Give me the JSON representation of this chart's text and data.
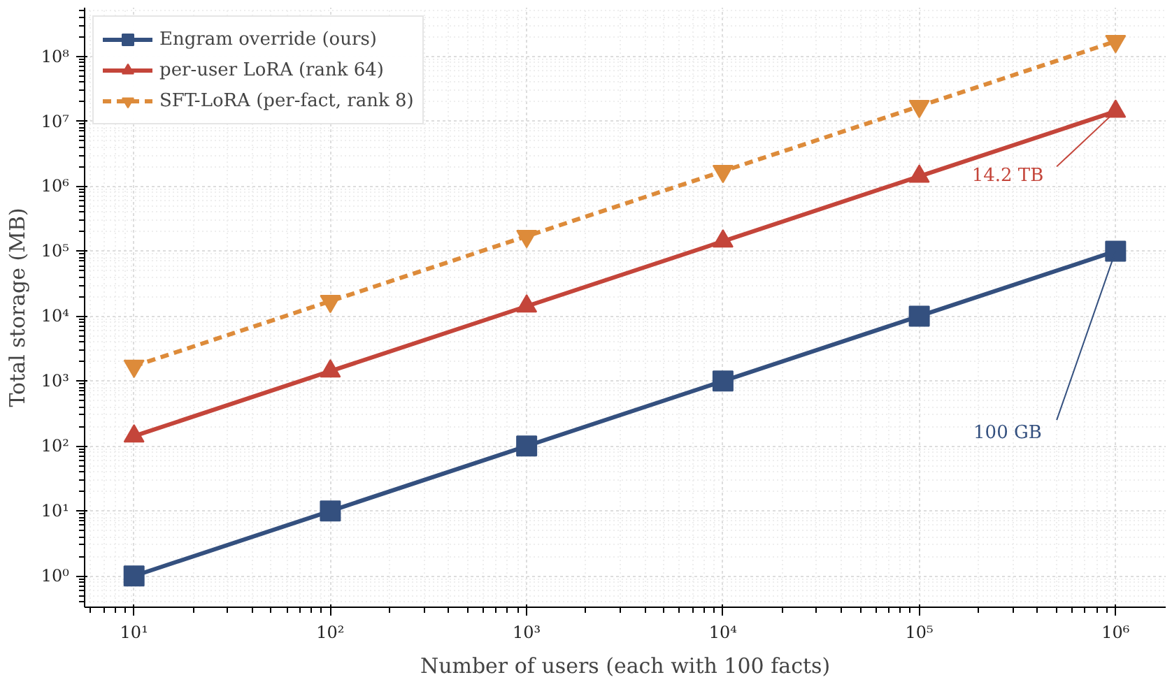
{
  "chart_data": {
    "type": "line",
    "xlabel": "Number of users (each with 100 facts)",
    "ylabel": "Total storage (MB)",
    "log": "xy",
    "grid": true,
    "legend": "top left",
    "x": [
      10,
      100,
      1000,
      10000,
      100000,
      1000000
    ],
    "xlim": [
      5.6,
      1800000
    ],
    "ylim": [
      0.33,
      560000000
    ],
    "xticks": [
      {
        "value": 10,
        "label": "10¹"
      },
      {
        "value": 100,
        "label": "10²"
      },
      {
        "value": 1000,
        "label": "10³"
      },
      {
        "value": 10000,
        "label": "10⁴"
      },
      {
        "value": 100000,
        "label": "10⁵"
      },
      {
        "value": 1000000,
        "label": "10⁶"
      }
    ],
    "yticks": [
      {
        "value": 1,
        "label": "10⁰"
      },
      {
        "value": 10,
        "label": "10¹"
      },
      {
        "value": 100,
        "label": "10²"
      },
      {
        "value": 1000,
        "label": "10³"
      },
      {
        "value": 10000,
        "label": "10⁴"
      },
      {
        "value": 100000,
        "label": "10⁵"
      },
      {
        "value": 1000000,
        "label": "10⁶"
      },
      {
        "value": 10000000,
        "label": "10⁷"
      },
      {
        "value": 100000000,
        "label": "10⁸"
      }
    ],
    "series": [
      {
        "name": "Engram override (ours)",
        "color": "#34507f",
        "marker": "square",
        "line_style": "solid",
        "values": [
          1,
          10,
          100,
          1000,
          10000,
          100000
        ]
      },
      {
        "name": "per-user LoRA (rank 64)",
        "color": "#c4453a",
        "marker": "triangle",
        "line_style": "solid",
        "values": [
          142,
          1420,
          14200,
          142000,
          1420000,
          14200000
        ]
      },
      {
        "name": "SFT-LoRA (per-fact, rank 8)",
        "color": "#dd8b3a",
        "marker": "triangle",
        "line_style": "dashed",
        "values": [
          1700,
          17000,
          170000,
          1700000,
          17000000,
          170000000
        ]
      }
    ],
    "annotations": [
      {
        "text": "14.2 TB",
        "x": 1000000,
        "y": 14200000
      },
      {
        "text": "100 GB",
        "x": 1000000,
        "y": 100000
      }
    ]
  }
}
